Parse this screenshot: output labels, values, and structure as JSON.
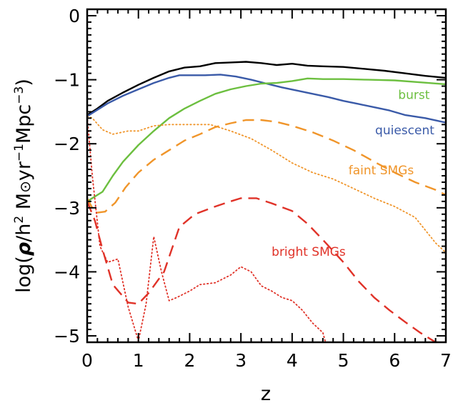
{
  "chart_data": {
    "type": "line",
    "title": "",
    "xlabel": "z",
    "ylabel_parts": [
      "log(",
      "ρ",
      "/h",
      "2",
      " M",
      "⊙",
      "yr",
      "−1",
      "Mpc",
      "−3",
      ")"
    ],
    "xlim": [
      0,
      7
    ],
    "ylim": [
      -5.1,
      0.1
    ],
    "xticks": [
      0,
      1,
      2,
      3,
      4,
      5,
      6,
      7
    ],
    "xtick_labels": [
      "0",
      "1",
      "2",
      "3",
      "4",
      "5",
      "6",
      "7"
    ],
    "yticks": [
      0,
      -1,
      -2,
      -3,
      -4,
      -5
    ],
    "ytick_labels": [
      "0",
      "−1",
      "−2",
      "−3",
      "−4",
      "−5"
    ],
    "grid": false,
    "legend": "inline labels",
    "series": [
      {
        "id": "total",
        "color": "#000000",
        "style": "solid",
        "x": [
          0,
          0.2,
          0.4,
          0.7,
          1.0,
          1.3,
          1.6,
          1.9,
          2.2,
          2.5,
          2.8,
          3.1,
          3.4,
          3.7,
          4.0,
          4.3,
          4.6,
          5.0,
          5.4,
          5.8,
          6.2,
          6.6,
          7.0
        ],
        "y": [
          -1.55,
          -1.45,
          -1.33,
          -1.2,
          -1.08,
          -0.97,
          -0.87,
          -0.81,
          -0.79,
          -0.74,
          -0.73,
          -0.72,
          -0.74,
          -0.77,
          -0.75,
          -0.78,
          -0.79,
          -0.8,
          -0.83,
          -0.86,
          -0.9,
          -0.94,
          -0.97
        ]
      },
      {
        "id": "quiescent",
        "name": "quiescent",
        "color": "#3a5aa8",
        "style": "solid",
        "x": [
          0,
          0.2,
          0.4,
          0.7,
          1.0,
          1.3,
          1.6,
          1.8,
          2.0,
          2.3,
          2.6,
          2.9,
          3.2,
          3.5,
          3.8,
          4.1,
          4.4,
          4.7,
          5.0,
          5.3,
          5.6,
          5.9,
          6.2,
          6.6,
          7.0
        ],
        "y": [
          -1.57,
          -1.47,
          -1.37,
          -1.25,
          -1.15,
          -1.05,
          -0.97,
          -0.93,
          -0.93,
          -0.93,
          -0.92,
          -0.95,
          -1.0,
          -1.06,
          -1.12,
          -1.17,
          -1.22,
          -1.27,
          -1.33,
          -1.38,
          -1.43,
          -1.48,
          -1.55,
          -1.6,
          -1.67
        ]
      },
      {
        "id": "burst",
        "name": "burst",
        "color": "#6cbf3f",
        "style": "solid",
        "x": [
          0,
          0.3,
          0.5,
          0.7,
          1.0,
          1.3,
          1.6,
          1.9,
          2.2,
          2.5,
          2.8,
          3.1,
          3.4,
          3.7,
          4.0,
          4.3,
          4.6,
          5.0,
          5.5,
          6.0,
          6.5,
          7.0
        ],
        "y": [
          -2.9,
          -2.75,
          -2.5,
          -2.28,
          -2.02,
          -1.8,
          -1.6,
          -1.45,
          -1.33,
          -1.22,
          -1.15,
          -1.1,
          -1.06,
          -1.05,
          -1.02,
          -0.98,
          -0.99,
          -0.99,
          -1.0,
          -1.01,
          -1.04,
          -1.07
        ]
      },
      {
        "id": "faint",
        "name": "faint SMGs",
        "color": "#f0952a",
        "style": "dashed",
        "x": [
          0,
          0.15,
          0.35,
          0.55,
          0.75,
          1.0,
          1.3,
          1.6,
          1.9,
          2.2,
          2.5,
          2.8,
          3.1,
          3.4,
          3.7,
          4.0,
          4.4,
          4.8,
          5.2,
          5.6,
          6.0,
          6.4,
          6.8,
          7.0
        ],
        "y": [
          -2.85,
          -3.08,
          -3.06,
          -2.92,
          -2.68,
          -2.45,
          -2.25,
          -2.1,
          -1.95,
          -1.85,
          -1.74,
          -1.68,
          -1.63,
          -1.63,
          -1.66,
          -1.72,
          -1.82,
          -1.95,
          -2.1,
          -2.28,
          -2.45,
          -2.6,
          -2.72,
          -2.8
        ]
      },
      {
        "id": "faint-dotted",
        "color": "#f0952a",
        "style": "dotted",
        "x": [
          0,
          0.1,
          0.3,
          0.5,
          0.8,
          1.0,
          1.3,
          1.6,
          2.0,
          2.4,
          2.8,
          3.2,
          3.6,
          4.0,
          4.4,
          4.8,
          5.2,
          5.6,
          6.0,
          6.4,
          6.8,
          7.0
        ],
        "y": [
          -1.57,
          -1.6,
          -1.78,
          -1.85,
          -1.8,
          -1.8,
          -1.72,
          -1.7,
          -1.7,
          -1.7,
          -1.8,
          -1.92,
          -2.1,
          -2.3,
          -2.45,
          -2.55,
          -2.7,
          -2.85,
          -2.98,
          -3.15,
          -3.55,
          -3.7
        ]
      },
      {
        "id": "bright",
        "name": "bright SMGs",
        "color": "#e03228",
        "style": "dashed",
        "x": [
          0,
          0.15,
          0.3,
          0.5,
          0.8,
          1.0,
          1.2,
          1.5,
          1.8,
          2.1,
          2.5,
          2.8,
          3.0,
          3.3,
          3.6,
          4.0,
          4.3,
          4.6,
          5.0,
          5.3,
          5.6,
          5.9,
          6.2,
          6.5,
          6.8,
          7.0
        ],
        "y": [
          -2.9,
          -3.2,
          -3.65,
          -4.2,
          -4.48,
          -4.5,
          -4.33,
          -4.0,
          -3.3,
          -3.1,
          -2.98,
          -2.9,
          -2.85,
          -2.85,
          -2.93,
          -3.05,
          -3.25,
          -3.5,
          -3.85,
          -4.15,
          -4.4,
          -4.6,
          -4.78,
          -4.95,
          -5.1,
          -5.1
        ]
      },
      {
        "id": "bright-dotted",
        "color": "#e03228",
        "style": "dotted",
        "x": [
          0,
          0.1,
          0.25,
          0.4,
          0.6,
          0.8,
          1.0,
          1.15,
          1.3,
          1.45,
          1.6,
          1.75,
          2.0,
          2.2,
          2.5,
          2.8,
          3.0,
          3.2,
          3.4,
          3.6,
          3.8,
          4.0,
          4.2,
          4.4,
          4.6,
          4.65
        ],
        "y": [
          -1.57,
          -2.5,
          -3.6,
          -3.85,
          -3.8,
          -4.55,
          -5.08,
          -4.5,
          -3.45,
          -4.0,
          -4.45,
          -4.4,
          -4.3,
          -4.2,
          -4.17,
          -4.05,
          -3.92,
          -4.0,
          -4.22,
          -4.3,
          -4.4,
          -4.45,
          -4.6,
          -4.8,
          -4.95,
          -5.1
        ]
      }
    ],
    "annotations": [
      {
        "id": "burst-label",
        "text": "burst",
        "x": 6.07,
        "y": -1.3,
        "color": "#6cbf3f"
      },
      {
        "id": "quiescent-label",
        "text": "quiescent",
        "x": 5.62,
        "y": -1.85,
        "color": "#3a5aa8"
      },
      {
        "id": "faint-label",
        "text": "faint SMGs",
        "x": 5.1,
        "y": -2.48,
        "color": "#f0952a"
      },
      {
        "id": "bright-label",
        "text": "bright SMGs",
        "x": 3.6,
        "y": -3.75,
        "color": "#e03228"
      }
    ]
  }
}
